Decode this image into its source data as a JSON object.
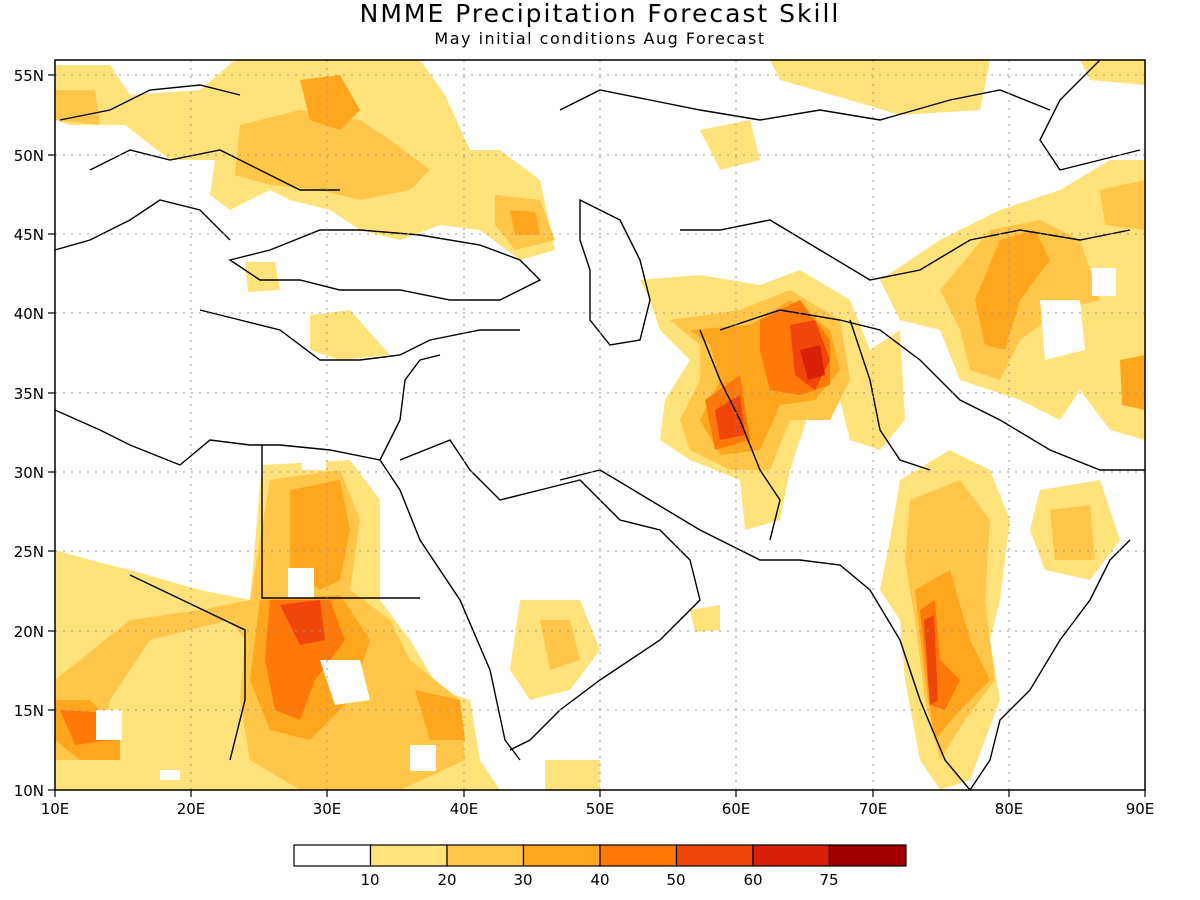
{
  "title": "NMME Precipitation Forecast Skill",
  "subtitle": "May initial conditions  Aug Forecast",
  "map": {
    "lon_range": [
      10,
      90
    ],
    "lat_range": [
      10,
      56
    ],
    "x_tick_labels": [
      "10E",
      "20E",
      "30E",
      "40E",
      "50E",
      "60E",
      "70E",
      "80E",
      "90E"
    ],
    "y_tick_labels": [
      "10N",
      "15N",
      "20N",
      "25N",
      "30N",
      "35N",
      "40N",
      "45N",
      "50N",
      "55N"
    ],
    "grid": "dotted"
  },
  "colorbar": {
    "labels": [
      "10",
      "20",
      "30",
      "40",
      "50",
      "60",
      "75"
    ],
    "colors": [
      "#ffffff",
      "#ffe27a",
      "#ffc64a",
      "#ffa51e",
      "#ff780a",
      "#f0460a",
      "#d8200a",
      "#a00000"
    ]
  }
}
